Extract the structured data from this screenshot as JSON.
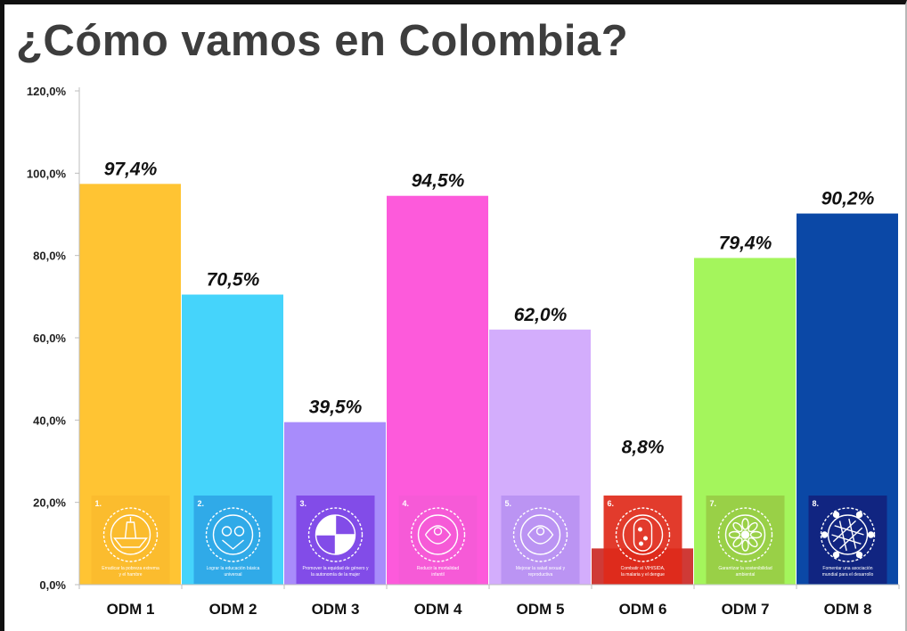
{
  "page": {
    "title": "¿Cómo vamos en Colombia?"
  },
  "chart_data": {
    "type": "bar",
    "categories": [
      "ODM 1",
      "ODM 2",
      "ODM 3",
      "ODM 4",
      "ODM 5",
      "ODM 6",
      "ODM 7",
      "ODM 8"
    ],
    "values": [
      97.4,
      70.5,
      39.5,
      94.5,
      62.0,
      8.8,
      79.4,
      90.2
    ],
    "data_labels": [
      "97,4%",
      "70,5%",
      "39,5%",
      "94,5%",
      "62,0%",
      "8,8%",
      "79,4%",
      "90,2%"
    ],
    "bar_colors": [
      "#ffc433",
      "#45d4fb",
      "#a88cfb",
      "#fd5adb",
      "#d3adfc",
      "#cf3a36",
      "#a4f55c",
      "#0b48a6"
    ],
    "badge_colors": [
      "#fbbb2e",
      "#2fa6e6",
      "#7f46e6",
      "#f55ad7",
      "#b991f2",
      "#e02a1a",
      "#98cc45",
      "#12237e"
    ],
    "ylim": [
      0,
      120
    ],
    "yticks": [
      0,
      20,
      40,
      60,
      80,
      100,
      120
    ],
    "ytick_labels": [
      "0,0%",
      "20,0%",
      "40,0%",
      "60,0%",
      "80,0%",
      "100,0%",
      "120,0%"
    ],
    "grid": false,
    "legend": "none",
    "badges": [
      {
        "num": "1.",
        "icon": "fountain-icon",
        "caption": [
          "Erradicar la pobreza extrema",
          "y el hambre"
        ]
      },
      {
        "num": "2.",
        "icon": "owl-icon",
        "caption": [
          "Lograr la educación básica",
          "universal"
        ]
      },
      {
        "num": "3.",
        "icon": "quartered-circle-icon",
        "caption": [
          "Promover la equidad de género y",
          "la autonomía de la mujer"
        ]
      },
      {
        "num": "4.",
        "icon": "child-figure-icon",
        "caption": [
          "Reducir la mortalidad",
          "infantil"
        ]
      },
      {
        "num": "5.",
        "icon": "mother-figure-icon",
        "caption": [
          "Mejorar la salud sexual y",
          "reproductiva"
        ]
      },
      {
        "num": "6.",
        "icon": "ribbon-figure-icon",
        "caption": [
          "Combatir el VIH/SIDA,",
          "la malaria y el dengue"
        ]
      },
      {
        "num": "7.",
        "icon": "flower-icon",
        "caption": [
          "Garantizar la sostenibilidad",
          "ambiental"
        ]
      },
      {
        "num": "8.",
        "icon": "network-globe-icon",
        "caption": [
          "Fomentar una asociación",
          "mundial para el desarrollo"
        ]
      }
    ]
  }
}
